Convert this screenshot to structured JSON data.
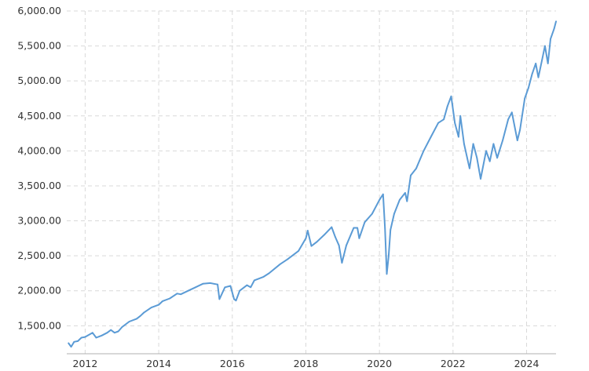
{
  "chart_data": {
    "type": "line",
    "title": "",
    "xlabel": "",
    "ylabel": "",
    "xlim": [
      2011.5,
      2024.8
    ],
    "ylim": [
      1100,
      6000
    ],
    "y_ticks": [
      {
        "value": 1500,
        "label": "1,500.00"
      },
      {
        "value": 2000,
        "label": "2,000.00"
      },
      {
        "value": 2500,
        "label": "2,500.00"
      },
      {
        "value": 3000,
        "label": "3,000.00"
      },
      {
        "value": 3500,
        "label": "3,500.00"
      },
      {
        "value": 4000,
        "label": "4,000.00"
      },
      {
        "value": 4500,
        "label": "4,500.00"
      },
      {
        "value": 5000,
        "label": "5,000.00"
      },
      {
        "value": 5500,
        "label": "5,500.00"
      },
      {
        "value": 6000,
        "label": "6,000.00"
      }
    ],
    "x_ticks": [
      {
        "value": 2012,
        "label": "2012"
      },
      {
        "value": 2014,
        "label": "2014"
      },
      {
        "value": 2016,
        "label": "2016"
      },
      {
        "value": 2018,
        "label": "2018"
      },
      {
        "value": 2020,
        "label": "2020"
      },
      {
        "value": 2022,
        "label": "2022"
      },
      {
        "value": 2024,
        "label": "2024"
      }
    ],
    "grid": true,
    "legend": "none",
    "line_color": "#5b9bd5",
    "series": [
      {
        "x": [
          2011.55,
          2011.62,
          2011.7,
          2011.8,
          2011.9,
          2012.0,
          2012.2,
          2012.3,
          2012.45,
          2012.6,
          2012.7,
          2012.8,
          2012.9,
          2013.0,
          2013.2,
          2013.4,
          2013.5,
          2013.6,
          2013.8,
          2014.0,
          2014.1,
          2014.3,
          2014.5,
          2014.6,
          2014.8,
          2015.0,
          2015.2,
          2015.4,
          2015.5,
          2015.6,
          2015.65,
          2015.8,
          2015.95,
          2016.05,
          2016.1,
          2016.2,
          2016.4,
          2016.5,
          2016.6,
          2016.85,
          2017.0,
          2017.3,
          2017.5,
          2017.8,
          2018.0,
          2018.05,
          2018.15,
          2018.3,
          2018.5,
          2018.7,
          2018.8,
          2018.9,
          2018.98,
          2019.1,
          2019.3,
          2019.4,
          2019.45,
          2019.6,
          2019.8,
          2020.0,
          2020.1,
          2020.15,
          2020.2,
          2020.25,
          2020.3,
          2020.4,
          2020.55,
          2020.7,
          2020.75,
          2020.85,
          2021.0,
          2021.2,
          2021.4,
          2021.6,
          2021.75,
          2021.85,
          2021.95,
          2022.05,
          2022.15,
          2022.2,
          2022.3,
          2022.45,
          2022.55,
          2022.65,
          2022.75,
          2022.9,
          2023.0,
          2023.1,
          2023.2,
          2023.35,
          2023.5,
          2023.6,
          2023.75,
          2023.82,
          2023.95,
          2024.05,
          2024.15,
          2024.25,
          2024.32,
          2024.42,
          2024.5,
          2024.58,
          2024.65,
          2024.75,
          2024.8
        ],
        "y": [
          1250,
          1200,
          1270,
          1280,
          1330,
          1340,
          1400,
          1330,
          1360,
          1400,
          1440,
          1400,
          1420,
          1480,
          1560,
          1600,
          1640,
          1690,
          1760,
          1800,
          1850,
          1890,
          1960,
          1950,
          2000,
          2050,
          2100,
          2110,
          2100,
          2090,
          1880,
          2050,
          2070,
          1880,
          1860,
          2000,
          2080,
          2050,
          2150,
          2200,
          2250,
          2380,
          2450,
          2570,
          2750,
          2860,
          2640,
          2700,
          2800,
          2910,
          2770,
          2650,
          2400,
          2650,
          2900,
          2900,
          2750,
          2980,
          3100,
          3300,
          3380,
          2900,
          2240,
          2500,
          2870,
          3100,
          3300,
          3400,
          3280,
          3650,
          3750,
          4000,
          4200,
          4400,
          4450,
          4640,
          4780,
          4400,
          4200,
          4500,
          4100,
          3750,
          4100,
          3900,
          3600,
          4000,
          3850,
          4100,
          3900,
          4150,
          4450,
          4550,
          4150,
          4300,
          4750,
          4900,
          5100,
          5250,
          5050,
          5300,
          5500,
          5250,
          5600,
          5750,
          5850
        ]
      }
    ]
  }
}
